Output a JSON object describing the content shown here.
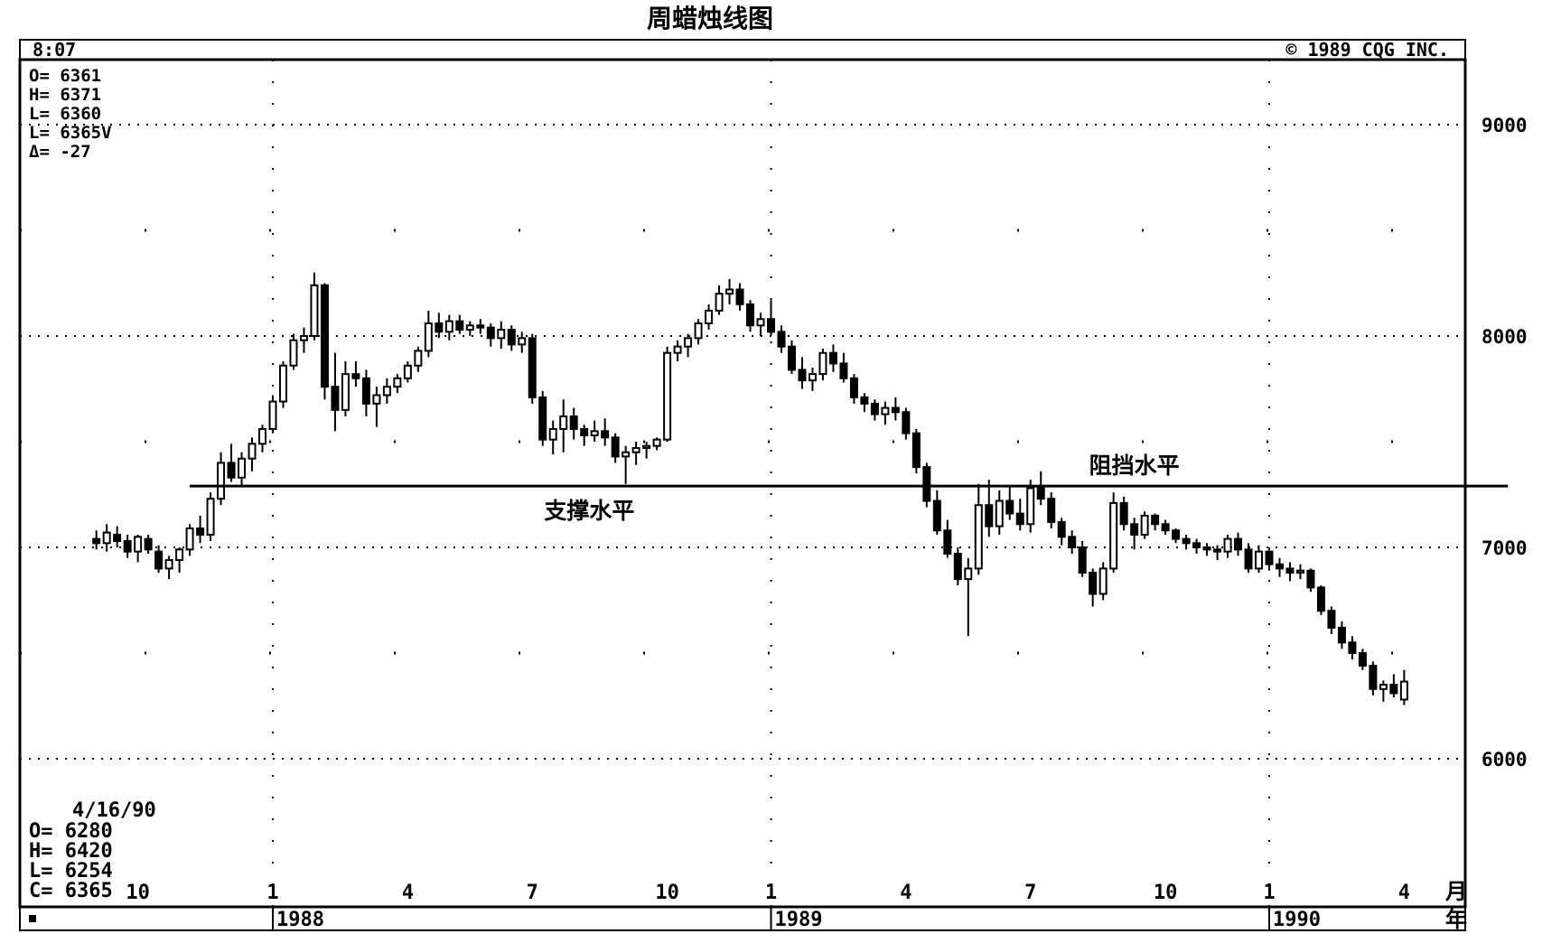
{
  "chart_data": {
    "type": "candlestick",
    "title": "周蜡烛线图",
    "header_left": "8:07",
    "header_right": "© 1989 CQG INC.",
    "ylim": [
      5500,
      9400
    ],
    "y_ticks": [
      6000,
      7000,
      8000,
      9000
    ],
    "y_grid": [
      6000,
      7000,
      8000,
      9000
    ],
    "x_range_weeks": [
      -17,
      122
    ],
    "month_ticks": [
      {
        "label": "10",
        "week": -13
      },
      {
        "label": "1",
        "week": 0
      },
      {
        "label": "4",
        "week": 13
      },
      {
        "label": "7",
        "week": 25
      },
      {
        "label": "10",
        "week": 38
      },
      {
        "label": "1",
        "week": 48
      },
      {
        "label": "4",
        "week": 61
      },
      {
        "label": "7",
        "week": 73
      },
      {
        "label": "10",
        "week": 86
      },
      {
        "label": "1",
        "week": 96
      },
      {
        "label": "4",
        "week": 109
      }
    ],
    "month_unit": "月",
    "year_ticks": [
      {
        "label": "1988",
        "week": 0
      },
      {
        "label": "1989",
        "week": 48
      },
      {
        "label": "1990",
        "week": 96
      }
    ],
    "year_unit": "年",
    "readout_top": {
      "o": "O= 6361",
      "h": "H= 6371",
      "l1": "L= 6360",
      "l2": "L= 6365V",
      "d": "Δ=   -27"
    },
    "readout_bottom": {
      "date": "4/16/90",
      "o": "O= 6280",
      "h": "H= 6420",
      "l": "L= 6254",
      "c": "C= 6365"
    },
    "support_line": {
      "label": "支撑水平",
      "value": 7290,
      "from_week": -8,
      "to_week": 119
    },
    "resistance_label": "阻挡水平",
    "candles": [
      [
        -17,
        7040,
        7080,
        6990,
        7020
      ],
      [
        -16,
        7020,
        7110,
        6980,
        7070
      ],
      [
        -15,
        7060,
        7100,
        7000,
        7030
      ],
      [
        -14,
        7030,
        7060,
        6950,
        6980
      ],
      [
        -13,
        6980,
        7060,
        6930,
        7050
      ],
      [
        -12,
        7040,
        7060,
        6970,
        6990
      ],
      [
        -11,
        6980,
        7010,
        6880,
        6900
      ],
      [
        -10,
        6900,
        6960,
        6850,
        6940
      ],
      [
        -9,
        6940,
        7000,
        6880,
        6990
      ],
      [
        -8,
        6990,
        7110,
        6960,
        7090
      ],
      [
        -7,
        7090,
        7150,
        7020,
        7060
      ],
      [
        -6,
        7060,
        7260,
        7030,
        7230
      ],
      [
        -5,
        7230,
        7450,
        7200,
        7400
      ],
      [
        -4,
        7400,
        7490,
        7310,
        7330
      ],
      [
        -3,
        7330,
        7450,
        7290,
        7420
      ],
      [
        -2,
        7420,
        7520,
        7360,
        7490
      ],
      [
        -1,
        7490,
        7580,
        7450,
        7560
      ],
      [
        0,
        7560,
        7720,
        7540,
        7690
      ],
      [
        1,
        7690,
        7880,
        7660,
        7860
      ],
      [
        2,
        7860,
        8010,
        7840,
        7980
      ],
      [
        3,
        7980,
        8040,
        7920,
        8000
      ],
      [
        4,
        8000,
        8300,
        7980,
        8240
      ],
      [
        5,
        8240,
        8250,
        7700,
        7760
      ],
      [
        6,
        7760,
        7920,
        7550,
        7650
      ],
      [
        7,
        7650,
        7880,
        7620,
        7820
      ],
      [
        8,
        7820,
        7880,
        7760,
        7800
      ],
      [
        9,
        7800,
        7840,
        7620,
        7680
      ],
      [
        10,
        7680,
        7760,
        7570,
        7720
      ],
      [
        11,
        7720,
        7800,
        7680,
        7760
      ],
      [
        12,
        7760,
        7820,
        7730,
        7800
      ],
      [
        13,
        7800,
        7880,
        7780,
        7860
      ],
      [
        14,
        7860,
        7950,
        7830,
        7930
      ],
      [
        15,
        7930,
        8120,
        7900,
        8060
      ],
      [
        16,
        8060,
        8110,
        7990,
        8020
      ],
      [
        17,
        8020,
        8100,
        7980,
        8070
      ],
      [
        18,
        8070,
        8100,
        8010,
        8030
      ],
      [
        19,
        8030,
        8070,
        8000,
        8050
      ],
      [
        20,
        8050,
        8080,
        8010,
        8040
      ],
      [
        21,
        8040,
        8060,
        7950,
        7990
      ],
      [
        22,
        7990,
        8070,
        7940,
        8030
      ],
      [
        23,
        8030,
        8050,
        7930,
        7960
      ],
      [
        24,
        7960,
        8020,
        7920,
        7990
      ],
      [
        25,
        7990,
        8010,
        7680,
        7710
      ],
      [
        26,
        7710,
        7740,
        7480,
        7510
      ],
      [
        27,
        7510,
        7600,
        7440,
        7560
      ],
      [
        28,
        7560,
        7700,
        7450,
        7620
      ],
      [
        29,
        7620,
        7660,
        7510,
        7560
      ],
      [
        30,
        7560,
        7580,
        7480,
        7530
      ],
      [
        31,
        7530,
        7600,
        7500,
        7550
      ],
      [
        32,
        7550,
        7610,
        7480,
        7520
      ],
      [
        33,
        7520,
        7540,
        7400,
        7430
      ],
      [
        34,
        7430,
        7480,
        7300,
        7450
      ],
      [
        35,
        7450,
        7500,
        7390,
        7470
      ],
      [
        36,
        7470,
        7500,
        7420,
        7480
      ],
      [
        37,
        7480,
        7520,
        7460,
        7510
      ],
      [
        38,
        7510,
        7950,
        7500,
        7920
      ],
      [
        39,
        7920,
        7980,
        7880,
        7950
      ],
      [
        40,
        7950,
        8010,
        7900,
        7990
      ],
      [
        41,
        7990,
        8080,
        7960,
        8060
      ],
      [
        42,
        8060,
        8150,
        8030,
        8120
      ],
      [
        43,
        8120,
        8240,
        8100,
        8200
      ],
      [
        44,
        8200,
        8270,
        8150,
        8220
      ],
      [
        45,
        8220,
        8250,
        8120,
        8150
      ],
      [
        46,
        8150,
        8170,
        8020,
        8050
      ],
      [
        47,
        8050,
        8110,
        8000,
        8080
      ],
      [
        48,
        8080,
        8170,
        8000,
        8020
      ],
      [
        49,
        8020,
        8050,
        7920,
        7950
      ],
      [
        50,
        7950,
        7980,
        7820,
        7840
      ],
      [
        51,
        7840,
        7900,
        7750,
        7790
      ],
      [
        52,
        7790,
        7850,
        7740,
        7820
      ],
      [
        53,
        7820,
        7940,
        7790,
        7920
      ],
      [
        54,
        7920,
        7960,
        7830,
        7870
      ],
      [
        55,
        7870,
        7920,
        7780,
        7800
      ],
      [
        56,
        7800,
        7820,
        7680,
        7710
      ],
      [
        57,
        7710,
        7730,
        7640,
        7680
      ],
      [
        58,
        7680,
        7700,
        7600,
        7630
      ],
      [
        59,
        7630,
        7690,
        7580,
        7660
      ],
      [
        60,
        7660,
        7710,
        7600,
        7640
      ],
      [
        61,
        7640,
        7660,
        7510,
        7540
      ],
      [
        62,
        7540,
        7560,
        7350,
        7380
      ],
      [
        63,
        7380,
        7400,
        7190,
        7220
      ],
      [
        64,
        7220,
        7270,
        7060,
        7080
      ],
      [
        65,
        7080,
        7130,
        6950,
        6970
      ],
      [
        66,
        6970,
        7000,
        6820,
        6850
      ],
      [
        67,
        6850,
        6950,
        6580,
        6900
      ],
      [
        68,
        6900,
        7300,
        6870,
        7200
      ],
      [
        69,
        7200,
        7320,
        7050,
        7100
      ],
      [
        70,
        7100,
        7270,
        7060,
        7220
      ],
      [
        71,
        7220,
        7290,
        7130,
        7160
      ],
      [
        72,
        7160,
        7230,
        7080,
        7110
      ],
      [
        73,
        7110,
        7320,
        7070,
        7280
      ],
      [
        74,
        7280,
        7360,
        7200,
        7230
      ],
      [
        75,
        7230,
        7260,
        7090,
        7120
      ],
      [
        76,
        7120,
        7140,
        7010,
        7050
      ],
      [
        77,
        7050,
        7080,
        6970,
        7000
      ],
      [
        78,
        7000,
        7030,
        6860,
        6880
      ],
      [
        79,
        6880,
        6900,
        6720,
        6780
      ],
      [
        80,
        6780,
        6930,
        6750,
        6900
      ],
      [
        81,
        6900,
        7260,
        6880,
        7210
      ],
      [
        82,
        7210,
        7240,
        7080,
        7110
      ],
      [
        83,
        7110,
        7140,
        6990,
        7060
      ],
      [
        84,
        7060,
        7170,
        7040,
        7150
      ],
      [
        85,
        7150,
        7160,
        7080,
        7110
      ],
      [
        86,
        7110,
        7130,
        7060,
        7080
      ],
      [
        87,
        7080,
        7090,
        7020,
        7040
      ],
      [
        88,
        7040,
        7060,
        6990,
        7020
      ],
      [
        89,
        7020,
        7040,
        6970,
        7000
      ],
      [
        90,
        7000,
        7020,
        6960,
        6990
      ],
      [
        91,
        6990,
        7010,
        6940,
        6980
      ],
      [
        92,
        6980,
        7060,
        6950,
        7040
      ],
      [
        93,
        7040,
        7070,
        6960,
        6990
      ],
      [
        94,
        6990,
        7020,
        6880,
        6900
      ],
      [
        95,
        6900,
        7010,
        6880,
        6980
      ],
      [
        96,
        6980,
        7000,
        6890,
        6920
      ],
      [
        97,
        6920,
        6950,
        6860,
        6900
      ],
      [
        98,
        6900,
        6930,
        6840,
        6880
      ],
      [
        99,
        6880,
        6920,
        6850,
        6890
      ],
      [
        100,
        6890,
        6900,
        6790,
        6810
      ],
      [
        101,
        6810,
        6820,
        6680,
        6700
      ],
      [
        102,
        6700,
        6720,
        6590,
        6620
      ],
      [
        103,
        6620,
        6650,
        6520,
        6550
      ],
      [
        104,
        6550,
        6580,
        6470,
        6500
      ],
      [
        105,
        6500,
        6520,
        6420,
        6440
      ],
      [
        106,
        6440,
        6460,
        6300,
        6330
      ],
      [
        107,
        6330,
        6370,
        6270,
        6350
      ],
      [
        108,
        6350,
        6400,
        6290,
        6310
      ],
      [
        109,
        6280,
        6420,
        6254,
        6365
      ]
    ]
  }
}
